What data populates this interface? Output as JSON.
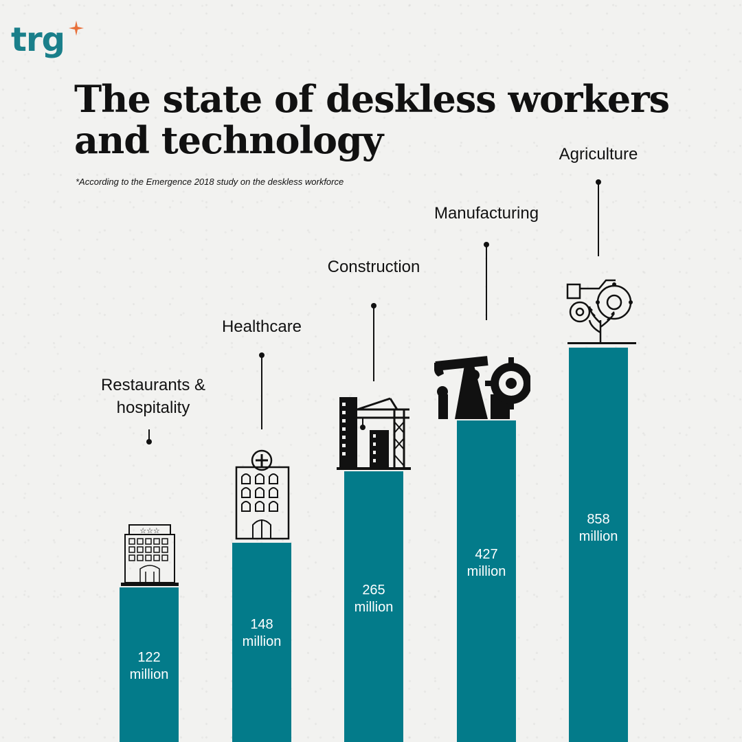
{
  "brand": {
    "logo_text": "trg",
    "accent": "#e8703a",
    "teal": "#1a7f8a"
  },
  "title": "The state of deskless workers and technology",
  "subtitle": "*According to the Emergence 2018 study on the deskless workforce",
  "chart_data": {
    "type": "bar",
    "title": "The state of deskless workers and technology",
    "unit": "million",
    "categories": [
      "Restaurants & hospitality",
      "Healthcare",
      "Construction",
      "Manufacturing",
      "Agriculture"
    ],
    "category_lines": [
      [
        "Restaurants &",
        "hospitality"
      ],
      [
        "Healthcare"
      ],
      [
        "Construction"
      ],
      [
        "Manufacturing"
      ],
      [
        "Agriculture"
      ]
    ],
    "values": [
      122,
      148,
      265,
      427,
      858
    ],
    "value_labels": [
      [
        "122",
        "million"
      ],
      [
        "148",
        "million"
      ],
      [
        "265",
        "million"
      ],
      [
        "427",
        "million"
      ],
      [
        "858",
        "million"
      ]
    ],
    "bar_color": "#037b8a",
    "icons": [
      "hotel-icon",
      "hospital-icon",
      "construction-crane-icon",
      "oil-pump-gear-icon",
      "tractor-wheat-icon"
    ],
    "xlabel": "",
    "ylabel": ""
  }
}
